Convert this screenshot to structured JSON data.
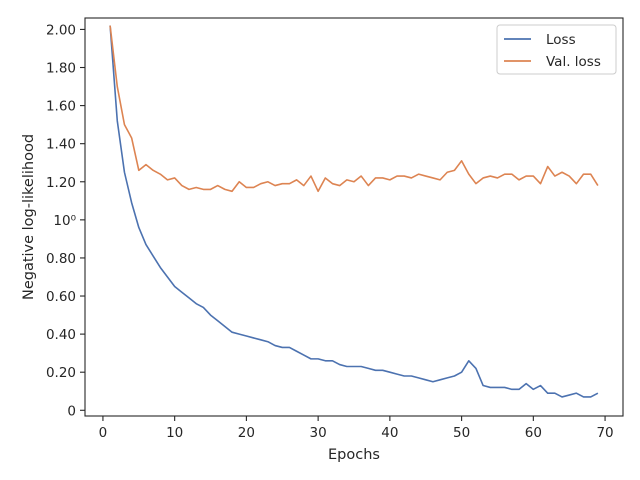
{
  "chart_data": {
    "type": "line",
    "title": "",
    "xlabel": "Epochs",
    "ylabel": "Negative log-likelihood",
    "xlim": [
      -2.5,
      72.5
    ],
    "ylim": [
      -0.03,
      2.06
    ],
    "x_ticks": [
      0,
      10,
      20,
      30,
      40,
      50,
      60,
      70
    ],
    "x_tick_labels": [
      "0",
      "10",
      "20",
      "30",
      "40",
      "50",
      "60",
      "70"
    ],
    "y_ticks": [
      0,
      0.2,
      0.4,
      0.6,
      0.8,
      1.0,
      1.2,
      1.4,
      1.6,
      1.8,
      2.0
    ],
    "y_tick_labels": [
      "0",
      "0.20",
      "0.40",
      "0.60",
      "0.80",
      "10⁰",
      "1.20",
      "1.40",
      "1.60",
      "1.80",
      "2.00"
    ],
    "grid": false,
    "legend_position": "top-right",
    "x": [
      1,
      2,
      3,
      4,
      5,
      6,
      7,
      8,
      9,
      10,
      11,
      12,
      13,
      14,
      15,
      16,
      17,
      18,
      19,
      20,
      21,
      22,
      23,
      24,
      25,
      26,
      27,
      28,
      29,
      30,
      31,
      32,
      33,
      34,
      35,
      36,
      37,
      38,
      39,
      40,
      41,
      42,
      43,
      44,
      45,
      46,
      47,
      48,
      49,
      50,
      51,
      52,
      53,
      54,
      55,
      56,
      57,
      58,
      59,
      60,
      61,
      62,
      63,
      64,
      65,
      66,
      67,
      68,
      69
    ],
    "series": [
      {
        "name": "Loss",
        "color": "#4c72b0",
        "values": [
          2.02,
          1.52,
          1.25,
          1.09,
          0.96,
          0.87,
          0.81,
          0.75,
          0.7,
          0.65,
          0.62,
          0.59,
          0.56,
          0.54,
          0.5,
          0.47,
          0.44,
          0.41,
          0.4,
          0.39,
          0.38,
          0.37,
          0.36,
          0.34,
          0.33,
          0.33,
          0.31,
          0.29,
          0.27,
          0.27,
          0.26,
          0.26,
          0.24,
          0.23,
          0.23,
          0.23,
          0.22,
          0.21,
          0.21,
          0.2,
          0.19,
          0.18,
          0.18,
          0.17,
          0.16,
          0.15,
          0.16,
          0.17,
          0.18,
          0.2,
          0.26,
          0.22,
          0.13,
          0.12,
          0.12,
          0.12,
          0.11,
          0.11,
          0.14,
          0.11,
          0.13,
          0.09,
          0.09,
          0.07,
          0.08,
          0.09,
          0.07,
          0.07,
          0.09
        ]
      },
      {
        "name": "Val. loss",
        "color": "#dd8452",
        "values": [
          2.02,
          1.7,
          1.5,
          1.43,
          1.26,
          1.29,
          1.26,
          1.24,
          1.21,
          1.22,
          1.18,
          1.16,
          1.17,
          1.16,
          1.16,
          1.18,
          1.16,
          1.15,
          1.2,
          1.17,
          1.17,
          1.19,
          1.2,
          1.18,
          1.19,
          1.19,
          1.21,
          1.18,
          1.23,
          1.15,
          1.22,
          1.19,
          1.18,
          1.21,
          1.2,
          1.23,
          1.18,
          1.22,
          1.22,
          1.21,
          1.23,
          1.23,
          1.22,
          1.24,
          1.23,
          1.22,
          1.21,
          1.25,
          1.26,
          1.31,
          1.24,
          1.19,
          1.22,
          1.23,
          1.22,
          1.24,
          1.24,
          1.21,
          1.23,
          1.23,
          1.19,
          1.28,
          1.23,
          1.25,
          1.23,
          1.19,
          1.24,
          1.24,
          1.18
        ]
      }
    ]
  }
}
